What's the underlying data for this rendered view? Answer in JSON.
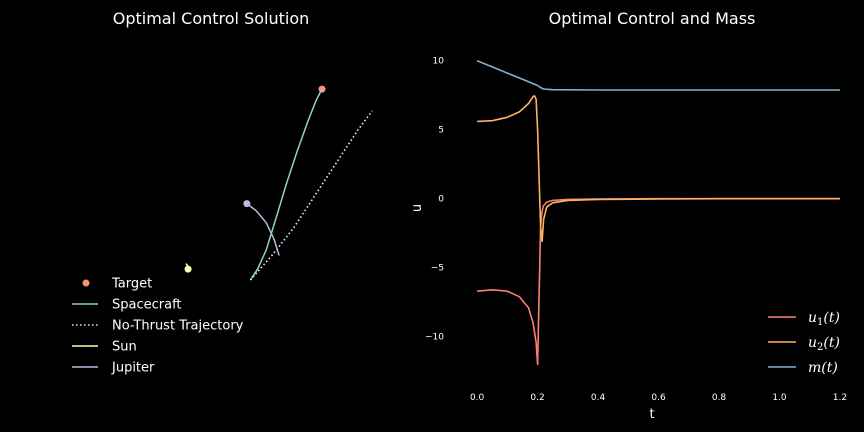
{
  "chart_data": [
    {
      "type": "line",
      "title": "Optimal Control Solution",
      "axes_visible": false,
      "xlim": [
        -3.3,
        2.2
      ],
      "ylim": [
        -2.2,
        4.4
      ],
      "legend_position": "lower-left",
      "series": [
        {
          "name": "Target",
          "kind": "marker",
          "color": "#fc9272",
          "points": [
            [
              1.0,
              3.5
            ]
          ]
        },
        {
          "name": "Spacecraft",
          "kind": "line",
          "color": "#8dd3c7",
          "points": [
            [
              0.0,
              0.0
            ],
            [
              0.1,
              0.2
            ],
            [
              0.22,
              0.55
            ],
            [
              0.35,
              1.1
            ],
            [
              0.5,
              1.75
            ],
            [
              0.65,
              2.35
            ],
            [
              0.8,
              2.9
            ],
            [
              0.92,
              3.3
            ],
            [
              1.0,
              3.5
            ]
          ]
        },
        {
          "name": "No-Thrust Trajectory",
          "kind": "dotted",
          "color": "#eeeeee",
          "points": [
            [
              0.0,
              0.0
            ],
            [
              0.3,
              0.45
            ],
            [
              0.6,
              0.95
            ],
            [
              0.9,
              1.55
            ],
            [
              1.2,
              2.15
            ],
            [
              1.5,
              2.75
            ],
            [
              1.7,
              3.1
            ]
          ]
        },
        {
          "name": "Sun",
          "kind": "line",
          "color": "#ffffb3",
          "points": [
            [
              -0.9,
              0.3
            ],
            [
              -0.87,
              0.25
            ],
            [
              -0.84,
              0.2
            ],
            [
              -0.87,
              0.17
            ]
          ],
          "marker_end": [
            -0.87,
            0.2
          ]
        },
        {
          "name": "Jupiter",
          "kind": "line",
          "color": "#bebada",
          "points": [
            [
              0.4,
              0.45
            ],
            [
              0.33,
              0.75
            ],
            [
              0.22,
              1.05
            ],
            [
              0.08,
              1.27
            ],
            [
              -0.05,
              1.4
            ]
          ],
          "marker_end": [
            -0.05,
            1.4
          ]
        }
      ]
    },
    {
      "type": "line",
      "title": "Optimal Control and Mass",
      "xlabel": "t",
      "ylabel": "u",
      "xlim": [
        -0.05,
        1.22
      ],
      "ylim": [
        -13.5,
        11.5
      ],
      "xticks": [
        "0.0",
        "0.2",
        "0.4",
        "0.6",
        "0.8",
        "1.0",
        "1.2"
      ],
      "xtick_values": [
        0.0,
        0.2,
        0.4,
        0.6,
        0.8,
        1.0,
        1.2
      ],
      "yticks": [
        "10",
        "5",
        "0",
        "−5",
        "−10"
      ],
      "ytick_values": [
        10,
        5,
        0,
        -5,
        -10
      ],
      "grid": false,
      "legend_position": "lower-right",
      "series": [
        {
          "name": "u₁(t)",
          "label_base": "u",
          "label_sub": "1",
          "label_suffix": "(t)",
          "color": "#fb8072",
          "x": [
            0.0,
            0.05,
            0.1,
            0.14,
            0.17,
            0.185,
            0.195,
            0.2,
            0.205,
            0.21,
            0.215,
            0.22,
            0.23,
            0.25,
            0.3,
            0.4,
            0.6,
            0.8,
            1.0,
            1.2
          ],
          "y": [
            -6.7,
            -6.6,
            -6.7,
            -7.1,
            -7.9,
            -9.0,
            -10.4,
            -12.0,
            -7.0,
            -2.0,
            -0.9,
            -0.5,
            -0.25,
            -0.12,
            -0.05,
            -0.02,
            0.0,
            0.0,
            0.0,
            0.0
          ]
        },
        {
          "name": "u₂(t)",
          "label_base": "u",
          "label_sub": "2",
          "label_suffix": "(t)",
          "color": "#fdb462",
          "x": [
            0.0,
            0.05,
            0.1,
            0.14,
            0.17,
            0.185,
            0.19,
            0.195,
            0.2,
            0.205,
            0.21,
            0.215,
            0.22,
            0.23,
            0.25,
            0.3,
            0.4,
            0.6,
            0.8,
            1.0,
            1.2
          ],
          "y": [
            5.6,
            5.65,
            5.9,
            6.3,
            6.9,
            7.4,
            7.45,
            7.2,
            5.0,
            1.5,
            -2.0,
            -3.1,
            -1.5,
            -0.6,
            -0.3,
            -0.12,
            -0.05,
            -0.02,
            0.0,
            0.0,
            0.0
          ]
        },
        {
          "name": "m(t)",
          "label_base": "m",
          "label_sub": "",
          "label_suffix": "(t)",
          "color": "#80b1d3",
          "x": [
            0.0,
            0.05,
            0.1,
            0.15,
            0.2,
            0.21,
            0.22,
            0.25,
            0.4,
            0.6,
            0.8,
            1.0,
            1.2
          ],
          "y": [
            10.0,
            9.55,
            9.1,
            8.65,
            8.2,
            8.05,
            7.95,
            7.9,
            7.88,
            7.88,
            7.88,
            7.88,
            7.88
          ]
        }
      ]
    }
  ]
}
